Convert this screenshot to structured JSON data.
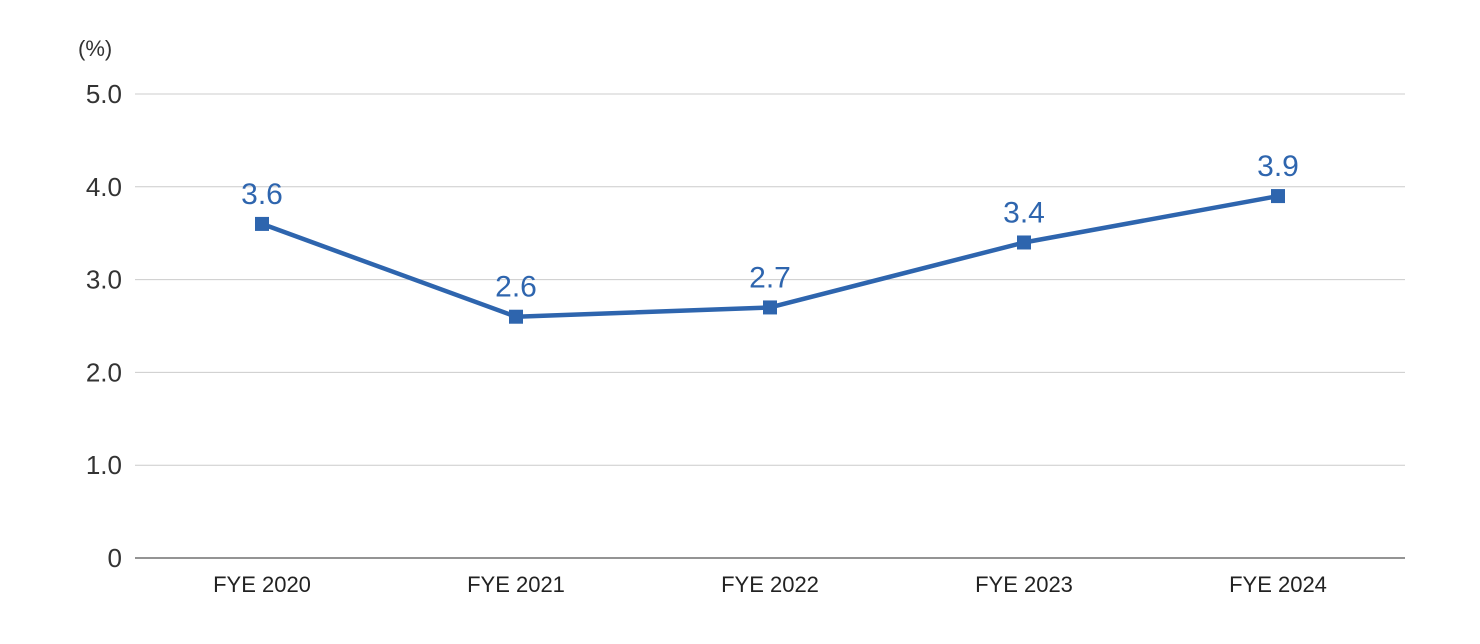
{
  "chart_data": {
    "type": "line",
    "unit_label": "(%)",
    "categories": [
      "FYE 2020",
      "FYE 2021",
      "FYE 2022",
      "FYE 2023",
      "FYE 2024"
    ],
    "series": [
      {
        "values": [
          3.6,
          2.6,
          2.7,
          3.4,
          3.9
        ]
      }
    ],
    "data_labels": [
      "3.6",
      "2.6",
      "2.7",
      "3.4",
      "3.9"
    ],
    "y_ticks": [
      0,
      1.0,
      2.0,
      3.0,
      4.0,
      5.0
    ],
    "y_tick_labels": [
      "0",
      "1.0",
      "2.0",
      "3.0",
      "4.0",
      "5.0"
    ],
    "ylim": [
      0,
      5.0
    ],
    "grid": true,
    "colors": {
      "series": "#2e65ae",
      "grid": "#cccccc",
      "axis": "#555555",
      "text": "#333333"
    }
  }
}
